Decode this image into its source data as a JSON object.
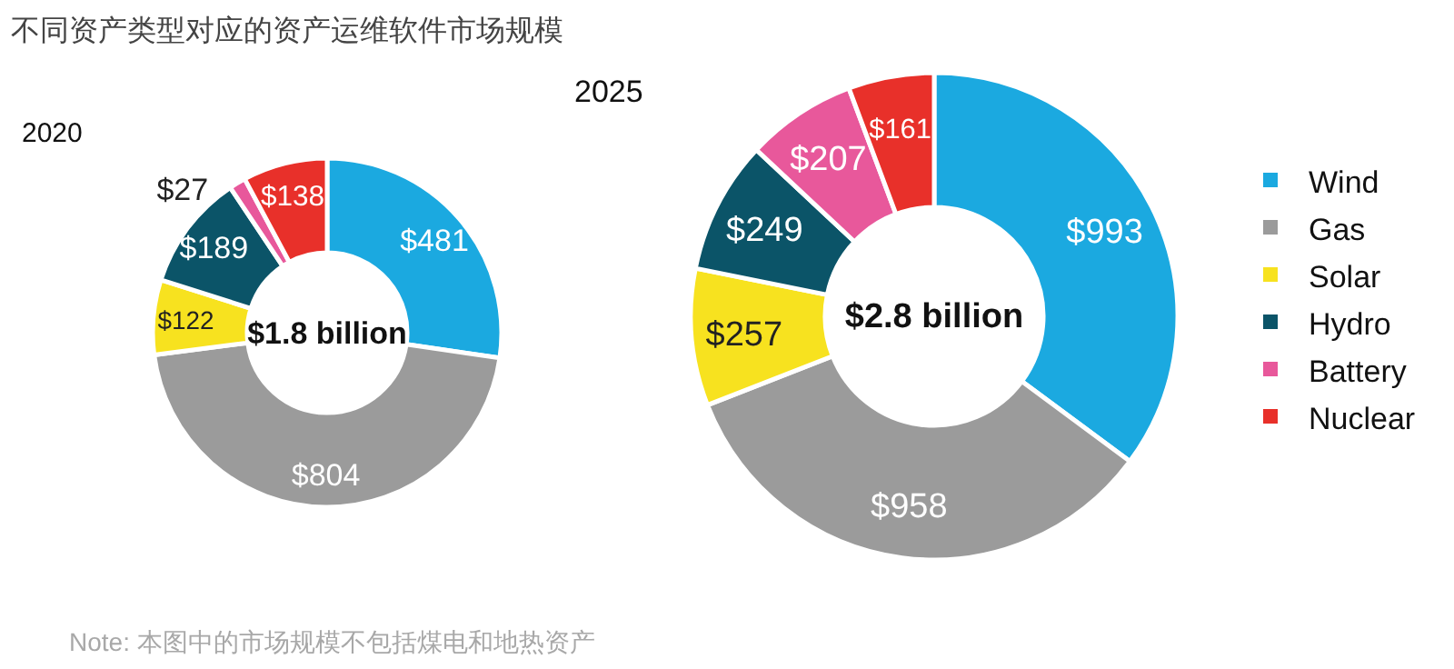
{
  "chart_data": [
    {
      "type": "donut",
      "title": "不同资产类型对应的资产运维软件市场规模",
      "subtitle": "2020",
      "categories": [
        null,
        null,
        null,
        null,
        null,
        null
      ],
      "values": [
        481,
        804,
        122,
        189,
        27,
        138
      ],
      "value_labels": [
        "$481",
        "$804",
        "$122",
        "$189",
        "$27",
        "$138"
      ],
      "colors": [
        "#1ba9e0",
        "#9b9b9b",
        "#f7e21f",
        "#0b5468",
        "#e8589b",
        "#e8302a"
      ],
      "annotations": [
        "$1.8 billion",
        "Note: 本图中的市场规模不包括煤电和地热资产"
      ]
    },
    {
      "type": "donut",
      "title": "2025",
      "categories": [
        "Wind",
        "Gas",
        "Solar",
        "Hydro",
        "Battery",
        "Nuclear"
      ],
      "values": [
        993,
        958,
        257,
        249,
        207,
        161
      ],
      "value_labels": [
        "$993",
        "$958",
        "$257",
        "$249",
        "$207",
        "$161"
      ],
      "colors": [
        "#1ba9e0",
        "#9b9b9b",
        "#f7e21f",
        "#0b5468",
        "#e8589b",
        "#e8302a"
      ],
      "annotations": [
        "$2.8 billion"
      ],
      "legend": "right"
    }
  ]
}
